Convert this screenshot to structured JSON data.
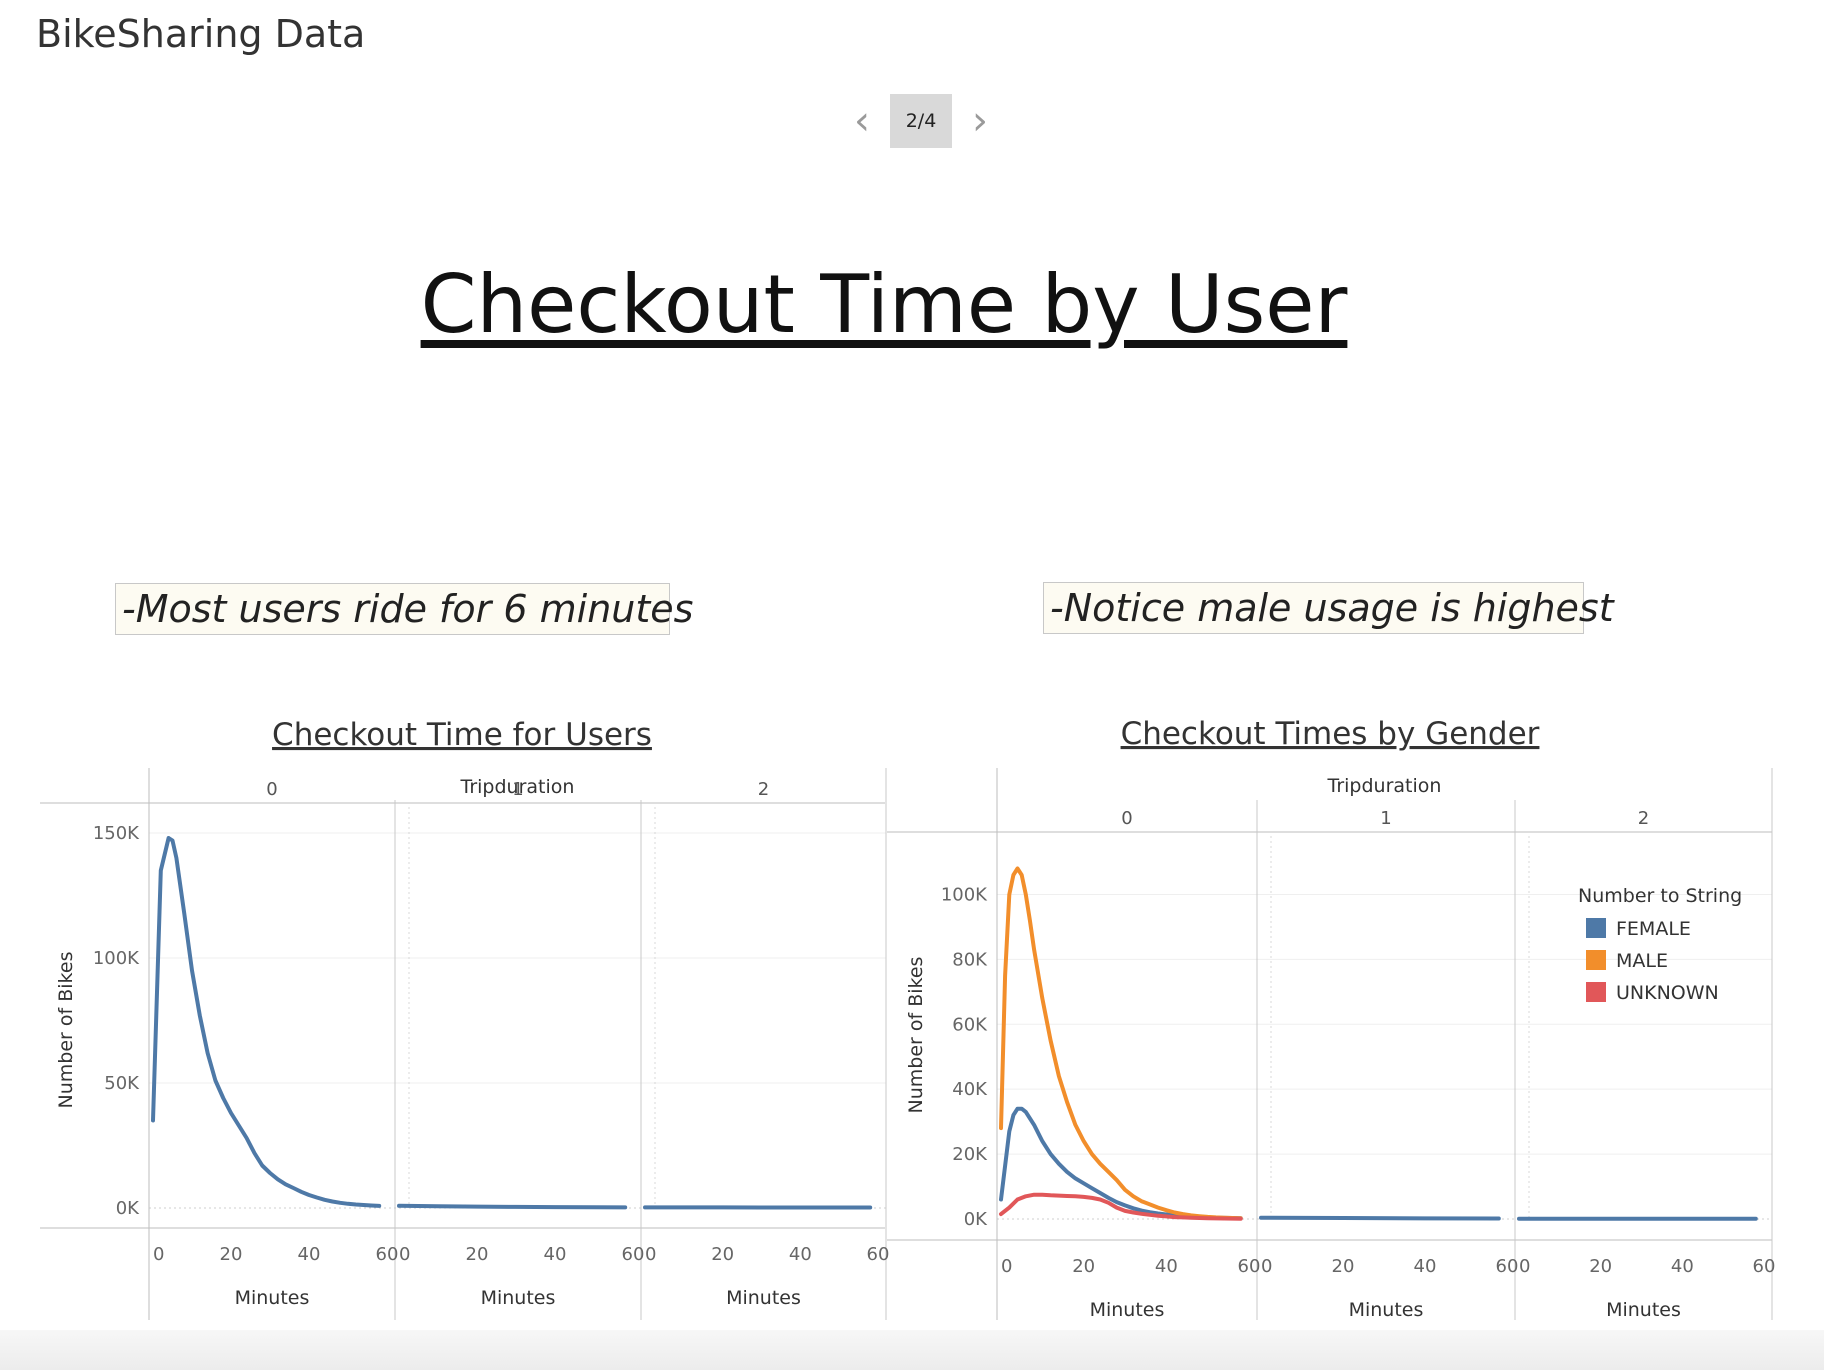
{
  "app": {
    "title": "BikeSharing Data"
  },
  "pager": {
    "label": "2/4",
    "prev_icon": "chevron-left-icon",
    "next_icon": "chevron-right-icon"
  },
  "story": {
    "title": "Checkout Time by User"
  },
  "notes": {
    "left": "-Most users ride for 6 minutes",
    "right": "-Notice male usage is highest"
  },
  "colors": {
    "female": "#4e79a7",
    "male": "#f28e2b",
    "unknown": "#e15759"
  },
  "chart_data": [
    {
      "type": "line",
      "title": "Checkout Time for Users",
      "column_header": "Tripduration",
      "panels": [
        "0",
        "1",
        "2"
      ],
      "xlabel": "Minutes",
      "ylabel": "Number of Bikes",
      "xlim": [
        0,
        60
      ],
      "xticks": [
        "0",
        "20",
        "40",
        "60"
      ],
      "ylim": [
        0,
        150000
      ],
      "yticks": [
        0,
        50000,
        100000,
        150000
      ],
      "ytick_labels": [
        "0K",
        "50K",
        "100K",
        "150K"
      ],
      "series": [
        {
          "color": "#4e79a7",
          "panels": [
            {
              "x": [
                0,
                2,
                4,
                5,
                6,
                8,
                10,
                12,
                14,
                16,
                18,
                20,
                22,
                24,
                26,
                28,
                30,
                32,
                34,
                36,
                38,
                40,
                42,
                44,
                46,
                48,
                50,
                52,
                54,
                56,
                58
              ],
              "y": [
                35000,
                135000,
                148000,
                147000,
                140000,
                118000,
                95000,
                77000,
                62000,
                51000,
                44000,
                38000,
                33000,
                28000,
                22000,
                17000,
                14000,
                11500,
                9500,
                8000,
                6500,
                5200,
                4200,
                3300,
                2600,
                2100,
                1700,
                1400,
                1200,
                1000,
                850
              ]
            },
            {
              "x": [
                0,
                10,
                20,
                30,
                40,
                50,
                58
              ],
              "y": [
                900,
                700,
                550,
                450,
                350,
                300,
                250
              ]
            },
            {
              "x": [
                0,
                10,
                20,
                30,
                40,
                50,
                58
              ],
              "y": [
                250,
                240,
                230,
                220,
                210,
                200,
                190
              ]
            }
          ]
        }
      ]
    },
    {
      "type": "line",
      "title": "Checkout Times by Gender",
      "column_header": "Tripduration",
      "panels": [
        "0",
        "1",
        "2"
      ],
      "xlabel": "Minutes",
      "ylabel": "Number of Bikes",
      "xlim": [
        0,
        60
      ],
      "xticks": [
        "0",
        "20",
        "40",
        "60"
      ],
      "ylim": [
        0,
        110000
      ],
      "yticks": [
        0,
        20000,
        40000,
        60000,
        80000,
        100000
      ],
      "ytick_labels": [
        "0K",
        "20K",
        "40K",
        "60K",
        "80K",
        "100K"
      ],
      "legend": {
        "title": "Number to String",
        "position": "top-right"
      },
      "series": [
        {
          "name": "FEMALE",
          "color": "#4e79a7",
          "panels": [
            {
              "x": [
                0,
                2,
                3,
                4,
                5,
                6,
                8,
                10,
                12,
                14,
                16,
                18,
                20,
                22,
                24,
                26,
                28,
                30,
                32,
                34,
                36,
                38,
                40,
                42,
                44,
                46,
                48,
                50,
                52,
                54,
                56,
                58
              ],
              "y": [
                6000,
                27000,
                32000,
                34000,
                34000,
                33000,
                29000,
                24000,
                20000,
                17000,
                14500,
                12500,
                11000,
                9500,
                8000,
                6500,
                5200,
                4200,
                3300,
                2600,
                2100,
                1700,
                1400,
                1100,
                900,
                750,
                600,
                500,
                400,
                350,
                300,
                250
              ]
            },
            {
              "x": [
                0,
                20,
                40,
                58
              ],
              "y": [
                400,
                300,
                200,
                150
              ]
            },
            {
              "x": [
                0,
                20,
                40,
                58
              ],
              "y": [
                100,
                100,
                90,
                90
              ]
            }
          ]
        },
        {
          "name": "MALE",
          "color": "#f28e2b",
          "panels": [
            {
              "x": [
                0,
                1,
                2,
                3,
                4,
                5,
                6,
                7,
                8,
                10,
                12,
                14,
                16,
                18,
                20,
                22,
                24,
                26,
                28,
                30,
                32,
                34,
                36,
                38,
                40,
                42,
                44,
                46,
                48,
                50,
                52,
                54,
                56,
                58
              ],
              "y": [
                28000,
                75000,
                100000,
                106000,
                108000,
                106000,
                100000,
                92000,
                83000,
                68000,
                55000,
                44000,
                36000,
                29000,
                24000,
                20000,
                17000,
                14500,
                12000,
                9000,
                7000,
                5500,
                4500,
                3500,
                2700,
                2000,
                1500,
                1100,
                850,
                650,
                500,
                400,
                300,
                250
              ]
            }
          ]
        },
        {
          "name": "UNKNOWN",
          "color": "#e15759",
          "panels": [
            {
              "x": [
                0,
                2,
                4,
                6,
                8,
                10,
                12,
                14,
                16,
                18,
                20,
                22,
                24,
                26,
                28,
                30,
                32,
                34,
                36,
                38,
                40,
                42,
                44,
                46,
                48,
                50,
                52,
                54,
                56,
                58
              ],
              "y": [
                1500,
                3500,
                6000,
                7000,
                7500,
                7500,
                7300,
                7200,
                7100,
                7000,
                6800,
                6500,
                6000,
                5000,
                3500,
                2500,
                2000,
                1600,
                1300,
                1000,
                800,
                600,
                500,
                400,
                300,
                250,
                200,
                150,
                120,
                100
              ]
            }
          ]
        }
      ]
    }
  ]
}
